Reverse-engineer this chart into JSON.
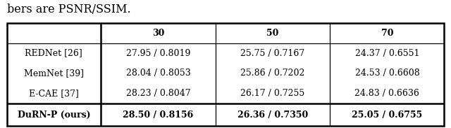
{
  "caption": "bers are PSNR/SSIM.",
  "headers": [
    "",
    "30",
    "50",
    "70"
  ],
  "rows": [
    [
      "REDNet [26]",
      "27.95 / 0.8019",
      "25.75 / 0.7167",
      "24.37 / 0.6551"
    ],
    [
      "MemNet [39]",
      "28.04 / 0.8053",
      "25.86 / 0.7202",
      "24.53 / 0.6608"
    ],
    [
      "E-CAE [37]",
      "28.23 / 0.8047",
      "26.17 / 0.7255",
      "24.83 / 0.6636"
    ]
  ],
  "bold_row": [
    "DuRN-P (ours)",
    "28.50 / 0.8156",
    "26.36 / 0.7350",
    "25.05 / 0.6755"
  ],
  "fig_width": 6.4,
  "fig_height": 1.83,
  "dpi": 100,
  "font_size": 9.0,
  "caption_font_size": 11.5
}
